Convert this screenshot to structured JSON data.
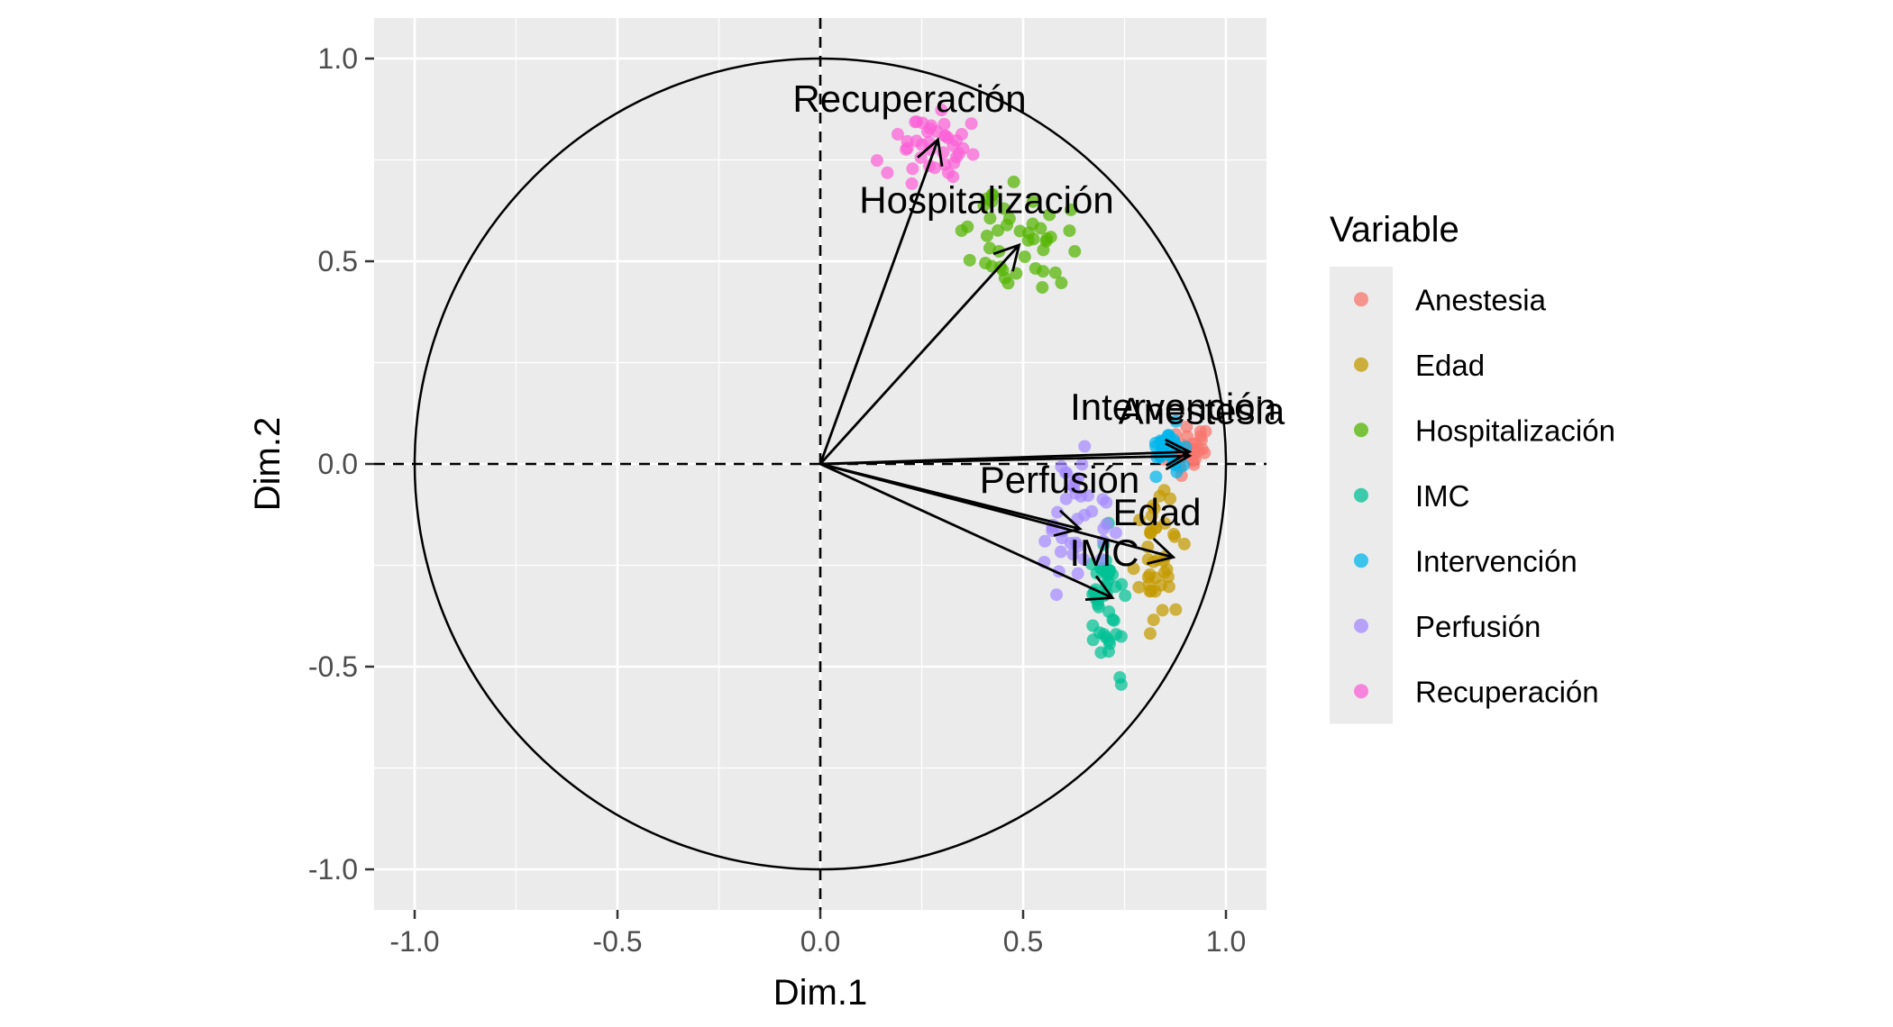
{
  "chart_data": {
    "type": "scatter",
    "xlabel": "Dim.1",
    "ylabel": "Dim.2",
    "xlim": [
      -1.1,
      1.1
    ],
    "ylim": [
      -1.1,
      1.1
    ],
    "x_ticks": [
      -1.0,
      -0.5,
      0.0,
      0.5,
      1.0
    ],
    "y_ticks": [
      -1.0,
      -0.5,
      0.0,
      0.5,
      1.0
    ],
    "x_tick_labels": [
      "-1.0",
      "-0.5",
      "0.0",
      "0.5",
      "1.0"
    ],
    "y_tick_labels": [
      "-1.0",
      "-0.5",
      "0.0",
      "0.5",
      "1.0"
    ],
    "grid": true,
    "unit_circle": true,
    "reference_lines": [
      {
        "axis": "x",
        "value": 0
      },
      {
        "axis": "y",
        "value": 0
      }
    ],
    "legend": {
      "title": "Variable",
      "position": "right"
    },
    "series": [
      {
        "name": "Anestesia",
        "color": "#F8766D",
        "arrow": [
          0.91,
          0.02
        ],
        "label_pos": [
          0.94,
          0.13
        ],
        "cloud": {
          "mean": [
            0.91,
            0.04
          ],
          "spread": [
            0.025,
            0.04
          ],
          "n": 30,
          "seed": 11
        }
      },
      {
        "name": "Edad",
        "color": "#C49A00",
        "arrow": [
          0.87,
          -0.23
        ],
        "label_pos": [
          0.83,
          -0.12
        ],
        "cloud": {
          "mean": [
            0.84,
            -0.24
          ],
          "spread": [
            0.025,
            0.07
          ],
          "n": 40,
          "seed": 23
        }
      },
      {
        "name": "Hospitalización",
        "color": "#53B400",
        "arrow": [
          0.49,
          0.54
        ],
        "label_pos": [
          0.41,
          0.65
        ],
        "cloud": {
          "mean": [
            0.49,
            0.55
          ],
          "spread": [
            0.06,
            0.06
          ],
          "n": 45,
          "seed": 37
        }
      },
      {
        "name": "IMC",
        "color": "#00C094",
        "arrow": [
          0.72,
          -0.33
        ],
        "label_pos": [
          0.7,
          -0.22
        ],
        "cloud": {
          "mean": [
            0.71,
            -0.34
          ],
          "spread": [
            0.025,
            0.08
          ],
          "n": 45,
          "seed": 41
        }
      },
      {
        "name": "Intervención",
        "color": "#00B6EB",
        "arrow": [
          0.91,
          0.03
        ],
        "label_pos": [
          0.87,
          0.14
        ],
        "cloud": {
          "mean": [
            0.86,
            0.04
          ],
          "spread": [
            0.025,
            0.03
          ],
          "n": 30,
          "seed": 53
        }
      },
      {
        "name": "Perfusión",
        "color": "#A58AFF",
        "arrow": [
          0.64,
          -0.16
        ],
        "label_pos": [
          0.59,
          -0.04
        ],
        "cloud": {
          "mean": [
            0.63,
            -0.16
          ],
          "spread": [
            0.045,
            0.08
          ],
          "n": 40,
          "seed": 67
        }
      },
      {
        "name": "Recuperación",
        "color": "#FB61D7",
        "arrow": [
          0.29,
          0.8
        ],
        "label_pos": [
          0.22,
          0.9
        ],
        "cloud": {
          "mean": [
            0.28,
            0.79
          ],
          "spread": [
            0.045,
            0.04
          ],
          "n": 40,
          "seed": 79
        }
      }
    ]
  }
}
